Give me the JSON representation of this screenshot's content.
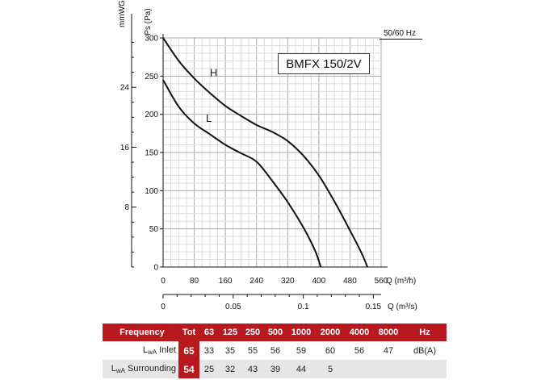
{
  "chart_data": {
    "type": "line",
    "title": "",
    "model": "BMFX 150/2V",
    "frequency_label": "50/60 Hz",
    "y_axis": {
      "label": "Ps (Pa)",
      "range": [
        0,
        300
      ],
      "ticks": [
        "300",
        "250",
        "200",
        "150",
        "100",
        "50",
        "0"
      ]
    },
    "y2_axis": {
      "label": "mmWG",
      "ticks": [
        "24",
        "16",
        "8"
      ],
      "values": [
        24,
        16,
        8
      ]
    },
    "x_axis": {
      "label": "Q (m³/h)",
      "range": [
        0,
        560
      ],
      "ticks": [
        "0",
        "80",
        "160",
        "240",
        "320",
        "400",
        "480",
        "560"
      ]
    },
    "x2_axis": {
      "label": "Q (m³/s)",
      "ticks": [
        "0",
        "0.05",
        "0.1",
        "0.15"
      ],
      "values": [
        0,
        0.05,
        0.1,
        0.15
      ]
    },
    "grid": true,
    "series": [
      {
        "name": "H",
        "points": [
          [
            0,
            300
          ],
          [
            40,
            270
          ],
          [
            80,
            247
          ],
          [
            120,
            228
          ],
          [
            160,
            211
          ],
          [
            200,
            198
          ],
          [
            240,
            186
          ],
          [
            280,
            177
          ],
          [
            320,
            165
          ],
          [
            360,
            146
          ],
          [
            400,
            120
          ],
          [
            440,
            86
          ],
          [
            480,
            48
          ],
          [
            510,
            18
          ],
          [
            525,
            0
          ]
        ]
      },
      {
        "name": "L",
        "points": [
          [
            0,
            245
          ],
          [
            40,
            210
          ],
          [
            80,
            188
          ],
          [
            120,
            174
          ],
          [
            160,
            160
          ],
          [
            200,
            149
          ],
          [
            240,
            138
          ],
          [
            280,
            113
          ],
          [
            320,
            85
          ],
          [
            360,
            52
          ],
          [
            390,
            22
          ],
          [
            405,
            0
          ]
        ]
      }
    ]
  },
  "noise_table": {
    "header": [
      "Frequency",
      "Tot",
      "63",
      "125",
      "250",
      "500",
      "1000",
      "2000",
      "4000",
      "8000",
      "Hz"
    ],
    "rows": [
      {
        "label_main": "L",
        "label_sub": "wA",
        "label_rest": " Inlet",
        "cells": [
          "65",
          "33",
          "35",
          "55",
          "56",
          "59",
          "60",
          "56",
          "47",
          "dB(A)"
        ]
      },
      {
        "label_main": "L",
        "label_sub": "wA",
        "label_rest": " Surrounding",
        "cells": [
          "54",
          "25",
          "32",
          "43",
          "39",
          "44",
          "5",
          "",
          "",
          ""
        ]
      }
    ]
  }
}
